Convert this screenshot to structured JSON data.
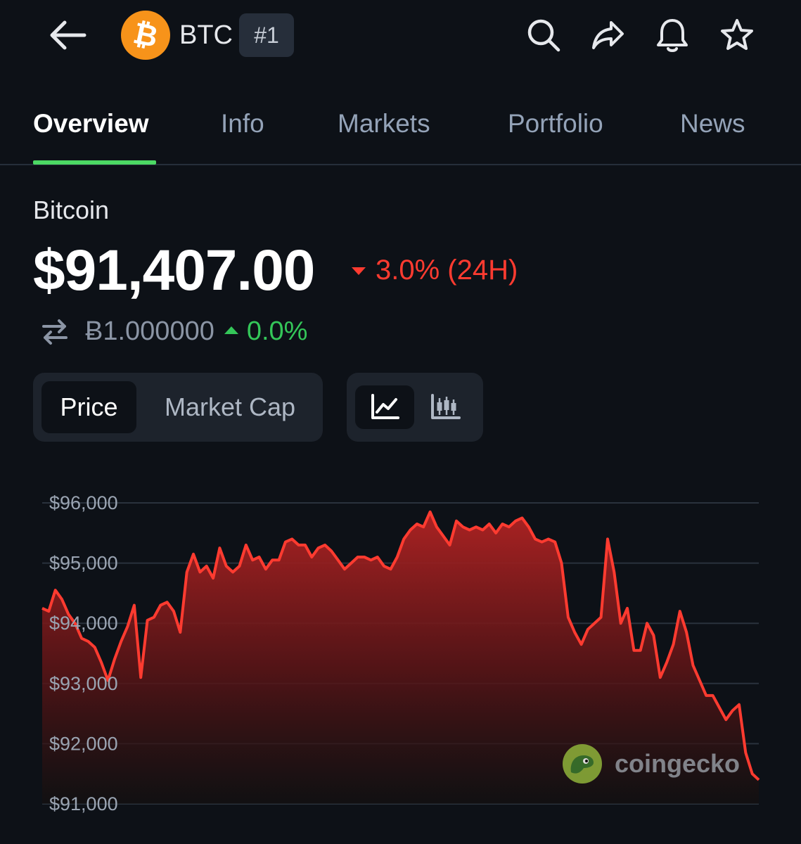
{
  "header": {
    "symbol": "BTC",
    "rank": "#1",
    "icons": [
      "back-arrow-icon",
      "bitcoin-logo-icon",
      "search-icon",
      "share-icon",
      "bell-icon",
      "star-icon"
    ]
  },
  "tabs": [
    {
      "label": "Overview",
      "active": true
    },
    {
      "label": "Info",
      "active": false
    },
    {
      "label": "Markets",
      "active": false
    },
    {
      "label": "Portfolio",
      "active": false
    },
    {
      "label": "News",
      "active": false
    }
  ],
  "coin": {
    "name": "Bitcoin",
    "price": "$91,407.00",
    "change_24h": "3.0% (24H)",
    "change_direction": "down",
    "btc_value": "Ƀ1.000000",
    "btc_change": "0.0%",
    "btc_change_direction": "up"
  },
  "chart_controls": {
    "metric_options": [
      {
        "label": "Price",
        "selected": true
      },
      {
        "label": "Market Cap",
        "selected": false
      }
    ],
    "chart_types": [
      {
        "icon": "line-chart-icon",
        "selected": true
      },
      {
        "icon": "candlestick-chart-icon",
        "selected": false
      }
    ]
  },
  "colors": {
    "background": "#0d1117",
    "accent_green": "#4cd964",
    "negative_red": "#ff3b30",
    "positive_green": "#34c759",
    "bitcoin_orange": "#f7931a"
  },
  "watermark": {
    "text": "coingecko",
    "icon": "coingecko-logo-icon"
  },
  "chart_data": {
    "type": "area",
    "title": "",
    "xlabel": "",
    "ylabel": "",
    "ylim": [
      91000,
      96000
    ],
    "y_ticks": [
      "$96,000",
      "$95,000",
      "$94,000",
      "$93,000",
      "$92,000",
      "$91,000"
    ],
    "y_tick_values": [
      96000,
      95000,
      94000,
      93000,
      92000,
      91000
    ],
    "grid": true,
    "line_color": "#ff3b30",
    "series": [
      {
        "values": [
          94250,
          94200,
          94550,
          94400,
          94150,
          94000,
          93750,
          93700,
          93600,
          93350,
          93050,
          93400,
          93700,
          93950,
          94300,
          93100,
          94050,
          94100,
          94300,
          94350,
          94200,
          93850,
          94850,
          95150,
          94850,
          94950,
          94750,
          95250,
          94950,
          94850,
          94950,
          95300,
          95050,
          95100,
          94900,
          95050,
          95050,
          95350,
          95400,
          95300,
          95300,
          95100,
          95250,
          95300,
          95200,
          95050,
          94900,
          95000,
          95100,
          95100,
          95050,
          95100,
          94950,
          94900,
          95100,
          95400,
          95550,
          95650,
          95600,
          95850,
          95600,
          95450,
          95300,
          95700,
          95600,
          95550,
          95600,
          95550,
          95650,
          95500,
          95650,
          95600,
          95700,
          95750,
          95600,
          95400,
          95350,
          95400,
          95350,
          95000,
          94100,
          93850,
          93650,
          93900,
          94000,
          94100,
          95400,
          94850,
          94000,
          94250,
          93550,
          93550,
          94000,
          93800,
          93100,
          93350,
          93650,
          94200,
          93850,
          93300,
          93050,
          92800,
          92800,
          92600,
          92400,
          92550,
          92650,
          91850,
          91500,
          91400
        ]
      }
    ]
  }
}
